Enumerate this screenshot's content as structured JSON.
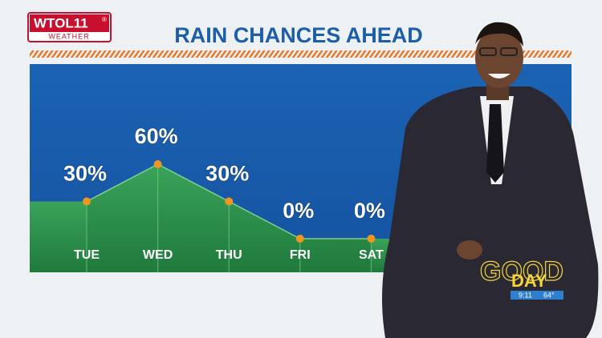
{
  "station": {
    "name": "WTOL11",
    "mark": "®",
    "tagline": "WEATHER"
  },
  "chart_data": {
    "type": "area",
    "title": "RAIN CHANCES AHEAD",
    "categories": [
      "TUE",
      "WED",
      "THU",
      "FRI",
      "SAT"
    ],
    "values": [
      30,
      60,
      30,
      0,
      0
    ],
    "value_labels": [
      "30%",
      "60%",
      "30%",
      "0%",
      "0%"
    ],
    "color": "#2f9150",
    "marker_color": "#f0961e"
  },
  "overlay": {
    "line1": "GOOD",
    "line2": "DAY",
    "time": "9:11",
    "temp": "64°"
  }
}
